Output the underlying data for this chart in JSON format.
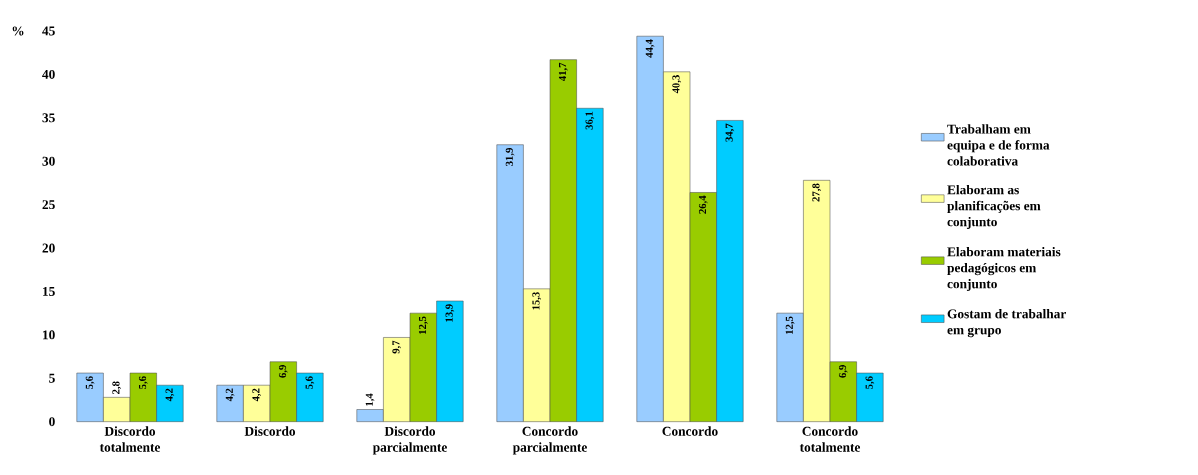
{
  "chart_data": {
    "type": "bar",
    "ylabel": "%",
    "categories": [
      "Discordo totalmente",
      "Discordo",
      "Discordo parcialmente",
      "Concordo parcialmente",
      "Concordo",
      "Concordo totalmente"
    ],
    "series": [
      {
        "name": "Trabalham em equipa e de forma colaborativa",
        "color": "#99ccff",
        "values": [
          5.6,
          4.2,
          1.4,
          31.9,
          44.4,
          12.5
        ],
        "value_labels": [
          "5,6",
          "4,2",
          "1,4",
          "31,9",
          "44,4",
          "12,5"
        ]
      },
      {
        "name": "Elaboram as planificações em conjunto",
        "color": "#ffff99",
        "values": [
          2.8,
          4.2,
          9.7,
          15.3,
          40.3,
          27.8
        ],
        "value_labels": [
          "2,8",
          "4,2",
          "9,7",
          "15,3",
          "40,3",
          "27,8"
        ]
      },
      {
        "name": "Elaboram materiais pedagógicos em conjunto",
        "color": "#99cc00",
        "values": [
          5.6,
          6.9,
          12.5,
          41.7,
          26.4,
          6.9
        ],
        "value_labels": [
          "5,6",
          "6,9",
          "12,5",
          "41,7",
          "26,4",
          "6,9"
        ]
      },
      {
        "name": "Gostam de trabalhar em grupo",
        "color": "#00ccff",
        "values": [
          4.2,
          5.6,
          13.9,
          36.1,
          34.7,
          5.6
        ],
        "value_labels": [
          "4,2",
          "5,6",
          "13,9",
          "36,1",
          "34,7",
          "5,6"
        ]
      }
    ],
    "ylim": [
      0,
      45
    ],
    "yticks": [
      0,
      5,
      10,
      15,
      20,
      25,
      30,
      35,
      40,
      45
    ],
    "legend": "right",
    "grid": false
  }
}
